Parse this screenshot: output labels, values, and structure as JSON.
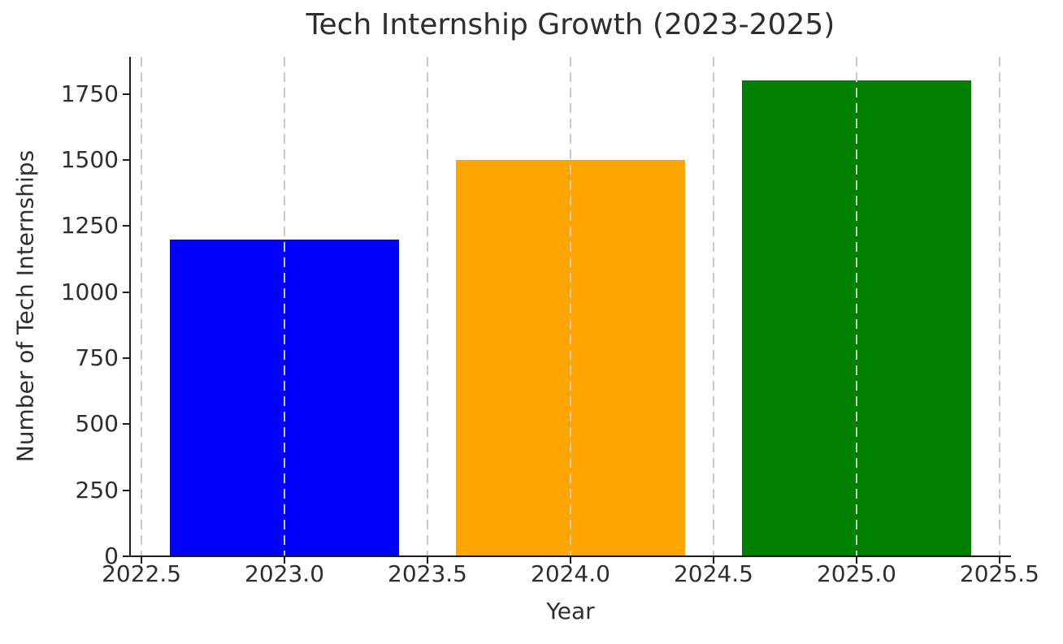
{
  "figure": {
    "background": "#ffffff",
    "text_color": "#2e2e2e",
    "axis_color": "#1c1c1c",
    "gridline_color": "#cbcbcb"
  },
  "chart_data": {
    "type": "bar",
    "title": "Tech Internship Growth (2023-2025)",
    "xlabel": "Year",
    "ylabel": "Number of Tech Internships",
    "categories": [
      2023,
      2024,
      2025
    ],
    "values": [
      1200,
      1500,
      1800
    ],
    "series": [
      {
        "name": "Tech Internships",
        "values": [
          1200,
          1500,
          1800
        ]
      }
    ],
    "bar_colors": [
      "#0000ff",
      "#ffa500",
      "#008000"
    ],
    "bar_width": 0.8,
    "xlim": [
      2022.46,
      2025.54
    ],
    "ylim": [
      0,
      1890
    ],
    "xticks": [
      {
        "value": 2022.5,
        "label": "2022.5"
      },
      {
        "value": 2023.0,
        "label": "2023.0"
      },
      {
        "value": 2023.5,
        "label": "2023.5"
      },
      {
        "value": 2024.0,
        "label": "2024.0"
      },
      {
        "value": 2024.5,
        "label": "2024.5"
      },
      {
        "value": 2025.0,
        "label": "2025.0"
      },
      {
        "value": 2025.5,
        "label": "2025.5"
      }
    ],
    "yticks": [
      {
        "value": 0,
        "label": "0"
      },
      {
        "value": 250,
        "label": "250"
      },
      {
        "value": 500,
        "label": "500"
      },
      {
        "value": 750,
        "label": "750"
      },
      {
        "value": 1000,
        "label": "1000"
      },
      {
        "value": 1250,
        "label": "1250"
      },
      {
        "value": 1500,
        "label": "1500"
      },
      {
        "value": 1750,
        "label": "1750"
      }
    ],
    "grid": {
      "axis": "x",
      "style": "dashed",
      "above_bars": true
    },
    "spines": {
      "left": true,
      "bottom": true,
      "top": false,
      "right": false
    },
    "legend": null
  }
}
